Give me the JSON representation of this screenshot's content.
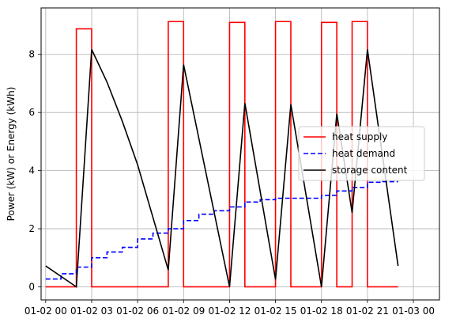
{
  "chart_data": {
    "type": "line",
    "title": "",
    "xlabel": "",
    "ylabel": "Power (kW) or Energy (kWh)",
    "xlim": [
      -0.3,
      25.7
    ],
    "ylim": [
      -0.45,
      9.6
    ],
    "grid": true,
    "legend_position": "center-right",
    "x_ticks": [
      {
        "value": 0,
        "label": "01-02 00"
      },
      {
        "value": 3,
        "label": "01-02 03"
      },
      {
        "value": 6,
        "label": "01-02 06"
      },
      {
        "value": 9,
        "label": "01-02 09"
      },
      {
        "value": 12,
        "label": "01-02 12"
      },
      {
        "value": 15,
        "label": "01-02 15"
      },
      {
        "value": 18,
        "label": "01-02 18"
      },
      {
        "value": 21,
        "label": "01-02 21"
      },
      {
        "value": 24,
        "label": "01-03 00"
      }
    ],
    "y_ticks": [
      {
        "value": 0,
        "label": "0"
      },
      {
        "value": 2,
        "label": "2"
      },
      {
        "value": 4,
        "label": "4"
      },
      {
        "value": 6,
        "label": "6"
      },
      {
        "value": 8,
        "label": "8"
      }
    ],
    "series": [
      {
        "name": "heat supply",
        "color": "#ff0000",
        "style": "solid",
        "step": "post",
        "x": [
          0,
          1,
          2,
          3,
          4,
          5,
          6,
          7,
          8,
          9,
          10,
          11,
          12,
          13,
          14,
          15,
          16,
          17,
          18,
          19,
          20,
          21,
          22,
          23
        ],
        "y": [
          0,
          0,
          8.88,
          0,
          0,
          0,
          0,
          0,
          9.13,
          0,
          0,
          0,
          9.1,
          0,
          0,
          9.13,
          0,
          0,
          9.1,
          0,
          9.13,
          0,
          0,
          0
        ]
      },
      {
        "name": "heat demand",
        "color": "#0000ff",
        "style": "dashed",
        "step": "post",
        "x": [
          0,
          1,
          2,
          3,
          4,
          5,
          6,
          7,
          8,
          9,
          10,
          11,
          12,
          13,
          14,
          15,
          16,
          17,
          18,
          19,
          20,
          21,
          22,
          23
        ],
        "y": [
          0.27,
          0.45,
          0.68,
          1.0,
          1.2,
          1.36,
          1.65,
          1.85,
          2.0,
          2.28,
          2.5,
          2.62,
          2.75,
          2.92,
          3.0,
          3.05,
          3.05,
          3.05,
          3.15,
          3.3,
          3.42,
          3.6,
          3.62,
          3.62
        ]
      },
      {
        "name": "storage content",
        "color": "#000000",
        "style": "solid",
        "step": "none",
        "x": [
          0,
          2,
          3,
          4,
          5,
          6,
          8,
          9,
          12,
          13,
          15,
          16,
          18,
          19,
          20,
          21,
          23
        ],
        "y": [
          0.72,
          0.0,
          8.17,
          7.05,
          5.7,
          4.2,
          0.58,
          7.65,
          0.0,
          6.32,
          0.25,
          6.28,
          0.0,
          5.96,
          2.55,
          8.17,
          0.72
        ]
      }
    ]
  }
}
